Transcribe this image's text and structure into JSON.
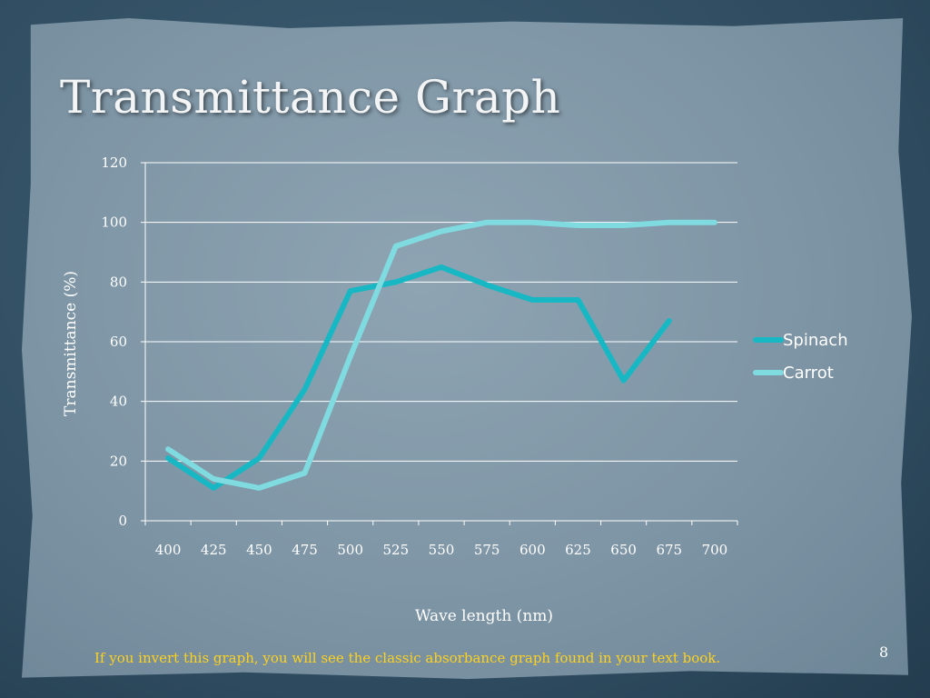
{
  "slide": {
    "title": "Transmittance Graph",
    "footnote": "If you invert this graph, you will see the classic  absorbance graph found in your text book.",
    "page_number": "8"
  },
  "chart_data": {
    "type": "line",
    "title": "",
    "xlabel": "Wave length (nm)",
    "ylabel": "Transmittance (%)",
    "categories": [
      "400",
      "425",
      "450",
      "475",
      "500",
      "525",
      "550",
      "575",
      "600",
      "625",
      "650",
      "675",
      "700"
    ],
    "ylim": [
      0,
      120
    ],
    "yticks": [
      0,
      20,
      40,
      60,
      80,
      100,
      120
    ],
    "grid": true,
    "legend_position": "right",
    "series": [
      {
        "name": "Spinach",
        "color": "#17b8c4",
        "values": [
          21,
          11,
          21,
          44,
          77,
          80,
          85,
          79,
          74,
          74,
          47,
          67,
          null
        ]
      },
      {
        "name": "Carrot",
        "color": "#7fdbe0",
        "values": [
          24,
          14,
          11,
          16,
          55,
          92,
          97,
          100,
          100,
          99,
          99,
          100,
          100
        ]
      }
    ]
  }
}
